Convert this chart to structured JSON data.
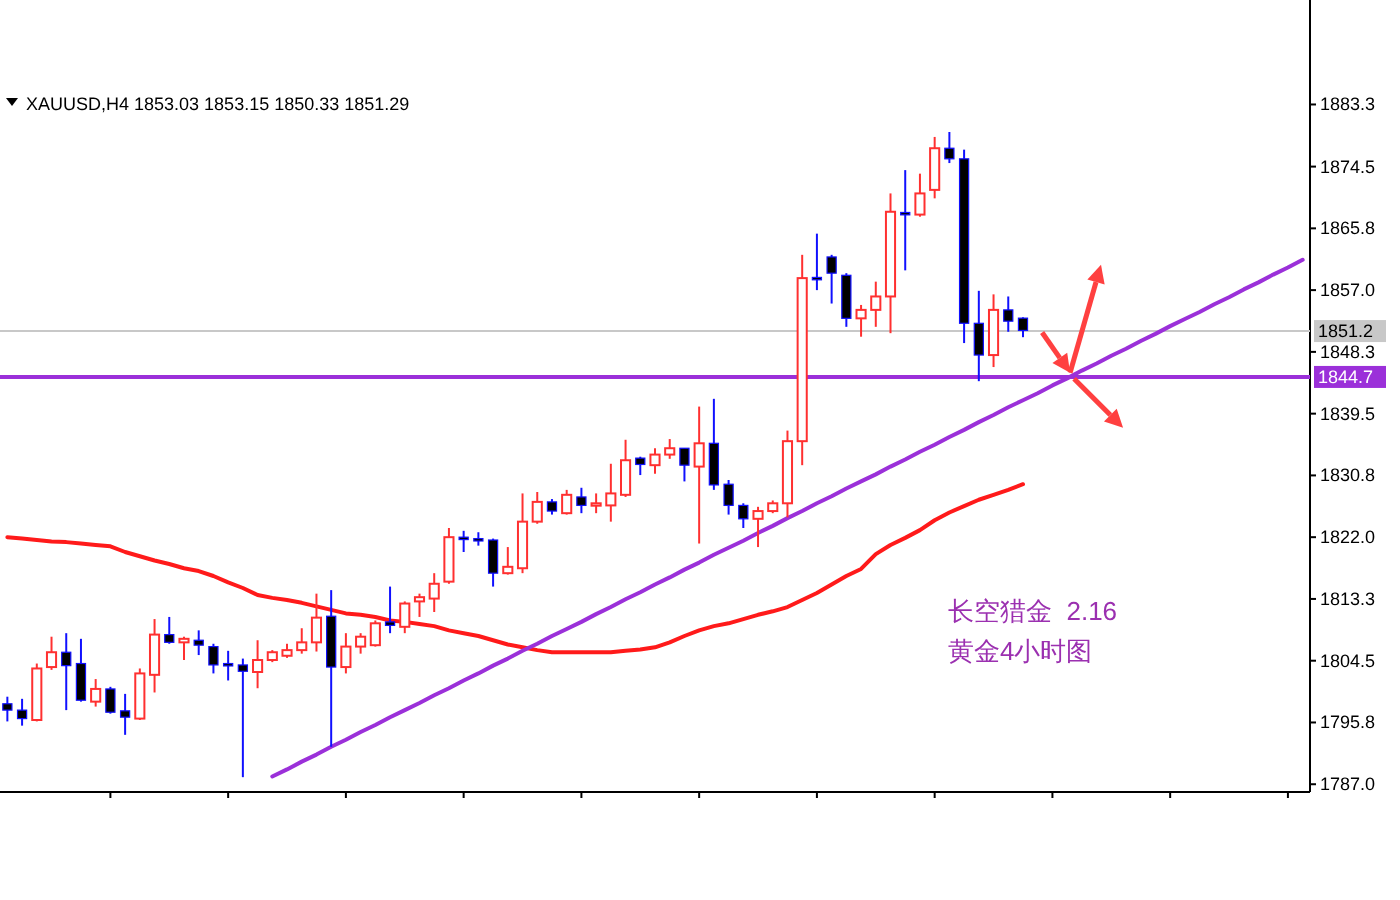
{
  "chart_data": {
    "type": "candlestick",
    "title": "XAUUSD,H4  1853.03 1853.15 1850.33 1851.29",
    "categories": [
      null,
      null,
      null,
      null,
      null,
      null,
      null,
      null,
      null,
      null,
      null,
      null,
      null,
      null,
      null,
      null,
      null,
      null,
      null,
      null,
      null,
      null,
      null,
      null,
      null,
      null,
      null,
      null,
      null,
      null,
      null,
      null,
      null,
      null,
      null,
      null,
      null,
      null,
      null,
      null,
      null,
      null,
      null,
      null,
      null,
      null,
      null,
      null,
      null,
      null,
      null,
      null,
      null,
      null,
      null,
      null,
      null,
      null,
      null,
      null,
      null,
      null,
      null,
      null,
      null,
      null,
      null,
      null,
      null,
      null,
      null,
      null,
      null,
      null,
      null,
      null,
      null,
      null,
      null,
      null,
      null,
      null,
      null,
      null,
      null,
      null,
      null,
      null,
      null
    ],
    "ohlc": [
      [
        1798.4,
        1799.4,
        1795.9,
        1797.5
      ],
      [
        1797.5,
        1799.1,
        1795.3,
        1796.3
      ],
      [
        1796.1,
        1804.1,
        1795.9,
        1803.4
      ],
      [
        1803.6,
        1807.9,
        1803.2,
        1805.7
      ],
      [
        1805.7,
        1808.4,
        1797.5,
        1803.8
      ],
      [
        1804.1,
        1807.6,
        1798.7,
        1798.9
      ],
      [
        1798.7,
        1801.9,
        1798.0,
        1800.5
      ],
      [
        1800.5,
        1800.8,
        1797.0,
        1797.2
      ],
      [
        1797.4,
        1799.8,
        1794.0,
        1796.5
      ],
      [
        1796.3,
        1803.4,
        1796.1,
        1802.7
      ],
      [
        1802.5,
        1810.4,
        1800.0,
        1808.2
      ],
      [
        1808.2,
        1810.7,
        1806.9,
        1807.1
      ],
      [
        1807.1,
        1807.9,
        1804.6,
        1807.6
      ],
      [
        1807.4,
        1808.8,
        1805.3,
        1806.7
      ],
      [
        1806.5,
        1806.9,
        1802.7,
        1803.9
      ],
      [
        1804.1,
        1805.9,
        1801.7,
        1803.9
      ],
      [
        1803.9,
        1804.8,
        1788.0,
        1803.0
      ],
      [
        1802.9,
        1807.4,
        1800.6,
        1804.6
      ],
      [
        1804.6,
        1806.0,
        1804.3,
        1805.7
      ],
      [
        1805.2,
        1806.9,
        1804.9,
        1806.0
      ],
      [
        1806.0,
        1809.1,
        1805.5,
        1807.1
      ],
      [
        1807.1,
        1814.0,
        1805.8,
        1810.6
      ],
      [
        1810.8,
        1814.5,
        1792.3,
        1803.6
      ],
      [
        1803.6,
        1808.4,
        1802.7,
        1806.5
      ],
      [
        1806.5,
        1808.4,
        1805.5,
        1807.9
      ],
      [
        1806.7,
        1810.2,
        1806.5,
        1809.8
      ],
      [
        1810.0,
        1815.0,
        1808.4,
        1809.5
      ],
      [
        1809.3,
        1812.9,
        1808.4,
        1812.6
      ],
      [
        1812.9,
        1814.0,
        1810.7,
        1813.5
      ],
      [
        1813.3,
        1816.9,
        1811.4,
        1815.4
      ],
      [
        1815.7,
        1823.3,
        1815.4,
        1822.0
      ],
      [
        1822.0,
        1822.9,
        1819.9,
        1821.8
      ],
      [
        1821.8,
        1822.7,
        1820.8,
        1821.6
      ],
      [
        1821.6,
        1821.8,
        1815.0,
        1816.9
      ],
      [
        1816.9,
        1820.6,
        1816.7,
        1817.8
      ],
      [
        1817.6,
        1828.2,
        1816.9,
        1824.2
      ],
      [
        1824.2,
        1828.4,
        1823.9,
        1827.0
      ],
      [
        1827.0,
        1827.4,
        1825.2,
        1825.7
      ],
      [
        1825.4,
        1828.7,
        1825.2,
        1828.0
      ],
      [
        1827.7,
        1829.0,
        1825.4,
        1826.5
      ],
      [
        1826.6,
        1828.2,
        1825.4,
        1826.8
      ],
      [
        1826.5,
        1832.4,
        1824.2,
        1828.2
      ],
      [
        1828.0,
        1835.8,
        1827.7,
        1832.9
      ],
      [
        1833.2,
        1833.4,
        1830.8,
        1832.3
      ],
      [
        1832.2,
        1834.6,
        1831.0,
        1833.7
      ],
      [
        1833.7,
        1835.9,
        1833.1,
        1834.6
      ],
      [
        1834.6,
        1834.6,
        1829.9,
        1832.2
      ],
      [
        1832.0,
        1840.5,
        1821.1,
        1835.3
      ],
      [
        1835.3,
        1841.6,
        1828.7,
        1829.4
      ],
      [
        1829.5,
        1830.1,
        1825.2,
        1826.5
      ],
      [
        1826.5,
        1826.8,
        1823.3,
        1824.6
      ],
      [
        1824.6,
        1826.3,
        1820.6,
        1825.7
      ],
      [
        1825.7,
        1827.2,
        1825.4,
        1826.8
      ],
      [
        1826.8,
        1837.1,
        1824.8,
        1835.6
      ],
      [
        1835.6,
        1862.0,
        1832.2,
        1858.7
      ],
      [
        1858.8,
        1865.0,
        1857.0,
        1858.6
      ],
      [
        1861.7,
        1862.0,
        1855.1,
        1859.4
      ],
      [
        1859.1,
        1859.4,
        1851.8,
        1853.0
      ],
      [
        1853.0,
        1854.9,
        1850.4,
        1854.2
      ],
      [
        1854.2,
        1858.2,
        1851.8,
        1856.1
      ],
      [
        1856.1,
        1870.7,
        1850.9,
        1868.1
      ],
      [
        1868.0,
        1874.0,
        1859.8,
        1867.8
      ],
      [
        1867.7,
        1873.5,
        1867.4,
        1870.7
      ],
      [
        1871.2,
        1878.7,
        1870.0,
        1877.1
      ],
      [
        1877.1,
        1879.4,
        1875.0,
        1875.6
      ],
      [
        1875.6,
        1876.9,
        1849.5,
        1852.3
      ],
      [
        1852.3,
        1856.9,
        1844.1,
        1847.8
      ],
      [
        1847.8,
        1856.4,
        1846.1,
        1854.2
      ],
      [
        1854.2,
        1856.1,
        1851.1,
        1852.6
      ],
      [
        1853.03,
        1853.15,
        1850.33,
        1851.29
      ],
      null,
      null,
      null,
      null,
      null,
      null,
      null,
      null,
      null,
      null,
      null,
      null,
      null,
      null,
      null,
      null,
      null,
      null,
      null
    ],
    "series": [
      {
        "type": "line",
        "color": "#ff1a1a",
        "values": [
          1822.0,
          1821.8,
          1821.6,
          1821.4,
          1821.3,
          1821.1,
          1820.9,
          1820.7,
          1819.9,
          1819.3,
          1818.7,
          1818.2,
          1817.6,
          1817.2,
          1816.5,
          1815.6,
          1814.8,
          1813.8,
          1813.4,
          1813.1,
          1812.7,
          1812.2,
          1811.7,
          1811.2,
          1811.0,
          1810.7,
          1810.2,
          1810.0,
          1809.7,
          1809.4,
          1808.8,
          1808.4,
          1808.0,
          1807.4,
          1806.8,
          1806.4,
          1806.0,
          1805.7,
          1805.7,
          1805.7,
          1805.7,
          1805.7,
          1805.9,
          1806.1,
          1806.4,
          1807.1,
          1808.0,
          1808.8,
          1809.4,
          1809.8,
          1810.4,
          1811.0,
          1811.5,
          1812.1,
          1813.1,
          1814.1,
          1815.3,
          1816.5,
          1817.5,
          1819.6,
          1820.9,
          1821.9,
          1823.0,
          1824.4,
          1825.5,
          1826.4,
          1827.3,
          1828.0,
          1828.7,
          1829.5,
          null,
          null,
          null,
          null,
          null,
          null,
          null,
          null,
          null,
          null,
          null,
          null,
          null,
          null,
          null,
          null,
          null,
          null,
          null
        ]
      },
      {
        "type": "line",
        "color": "#9b30d9",
        "values": [
          null,
          null,
          null,
          null,
          null,
          null,
          null,
          null,
          null,
          null,
          null,
          null,
          null,
          null,
          null,
          null,
          null,
          null,
          1788.1,
          1789.1,
          1790.2,
          1791.2,
          1792.3,
          1793.3,
          1794.4,
          1795.4,
          1796.5,
          1797.5,
          1798.5,
          1799.6,
          1800.6,
          1801.7,
          1802.7,
          1803.8,
          1804.8,
          1805.9,
          1806.9,
          1808.0,
          1809.0,
          1810.0,
          1811.1,
          1812.1,
          1813.2,
          1814.2,
          1815.3,
          1816.3,
          1817.4,
          1818.4,
          1819.5,
          1820.5,
          1821.5,
          1822.6,
          1823.6,
          1824.7,
          1825.7,
          1826.8,
          1827.8,
          1828.9,
          1829.9,
          1830.9,
          1832.0,
          1833.0,
          1834.1,
          1835.1,
          1836.2,
          1837.2,
          1838.3,
          1839.3,
          1840.4,
          1841.4,
          1842.4,
          1843.5,
          1844.5,
          1845.6,
          1846.6,
          1847.7,
          1848.7,
          1849.8,
          1850.8,
          1851.9,
          1852.9,
          1853.9,
          1855.0,
          1856.0,
          1857.1,
          1858.1,
          1859.2,
          1860.2,
          1861.3
        ]
      }
    ],
    "ylim": [
      1785.9,
      1898.1
    ],
    "yticks": [
      {
        "value": 1787.0,
        "label": "1787.0"
      },
      {
        "value": 1795.75,
        "label": "1795.8"
      },
      {
        "value": 1804.5,
        "label": "1804.5"
      },
      {
        "value": 1813.25,
        "label": "1813.3"
      },
      {
        "value": 1822.0,
        "label": "1822.0"
      },
      {
        "value": 1830.75,
        "label": "1830.8"
      },
      {
        "value": 1839.5,
        "label": "1839.5"
      },
      {
        "value": 1848.25,
        "label": "1848.3"
      },
      {
        "value": 1857.0,
        "label": "1857.0"
      },
      {
        "value": 1865.75,
        "label": "1865.8"
      },
      {
        "value": 1874.5,
        "label": "1874.5"
      },
      {
        "value": 1883.3,
        "label": "1883.3"
      }
    ],
    "ref_lines": [
      {
        "axis": "y",
        "value": 1851.2,
        "label": "1851.2",
        "color": "#c8c8c8"
      },
      {
        "axis": "y",
        "value": 1844.7,
        "label": "1844.7",
        "color": "#9b30d9"
      }
    ],
    "annotations": [
      "长空猎金  2.16",
      "黄金4小时图"
    ],
    "tick_labels": "y"
  }
}
